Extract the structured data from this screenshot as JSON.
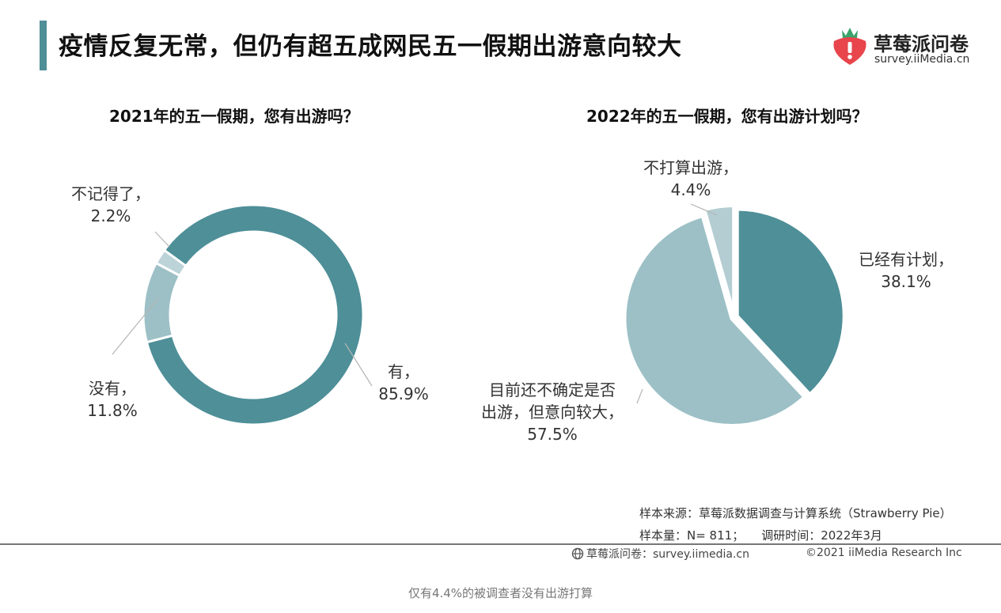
{
  "header": {
    "title": "疫情反复无常，但仍有超五成网民五一假期出游意向较大",
    "accent_color": "#4e8f98"
  },
  "brand": {
    "name": "草莓派问卷",
    "url": "survey.iiMedia.cn",
    "logo_icon": "strawberry-logo-icon",
    "logo_color": "#e8454c"
  },
  "chart_data": [
    {
      "type": "pie",
      "variant": "donut",
      "title": "2021年的五一假期，您有出游吗？",
      "slices": [
        {
          "label": "有",
          "value": 85.9,
          "display": "85.9%",
          "color": "#4e8f98"
        },
        {
          "label": "没有",
          "value": 11.8,
          "display": "11.8%",
          "color": "#9cc0c6"
        },
        {
          "label": "不记得了",
          "value": 2.2,
          "display": "2.2%",
          "color": "#bcd3d8"
        }
      ]
    },
    {
      "type": "pie",
      "title": "2022年的五一假期，您有出游计划吗？",
      "slices": [
        {
          "label": "已经有计划",
          "value": 38.1,
          "display": "38.1%",
          "color": "#4e8f98"
        },
        {
          "label": "目前还不确定是否出游，但意向较大",
          "label_lines": [
            "目前还不确定是否",
            "出游，但意向较大"
          ],
          "value": 57.5,
          "display": "57.5%",
          "color": "#9cc0c6"
        },
        {
          "label": "不打算出游",
          "value": 4.4,
          "display": "4.4%",
          "color": "#b3cdd2"
        }
      ]
    }
  ],
  "source": {
    "source_text": "样本来源：草莓派数据调查与计算系统（Strawberry Pie）",
    "sample_size": "样本量：N= 811；",
    "survey_time": "调研时间：2022年3月"
  },
  "footer": {
    "icon": "globe-icon",
    "left": "草莓派问卷：survey.iimedia.cn",
    "right": "©2021  iiMedia Research  Inc"
  },
  "caption": "仅有4.4%的被调查者没有出游打算"
}
